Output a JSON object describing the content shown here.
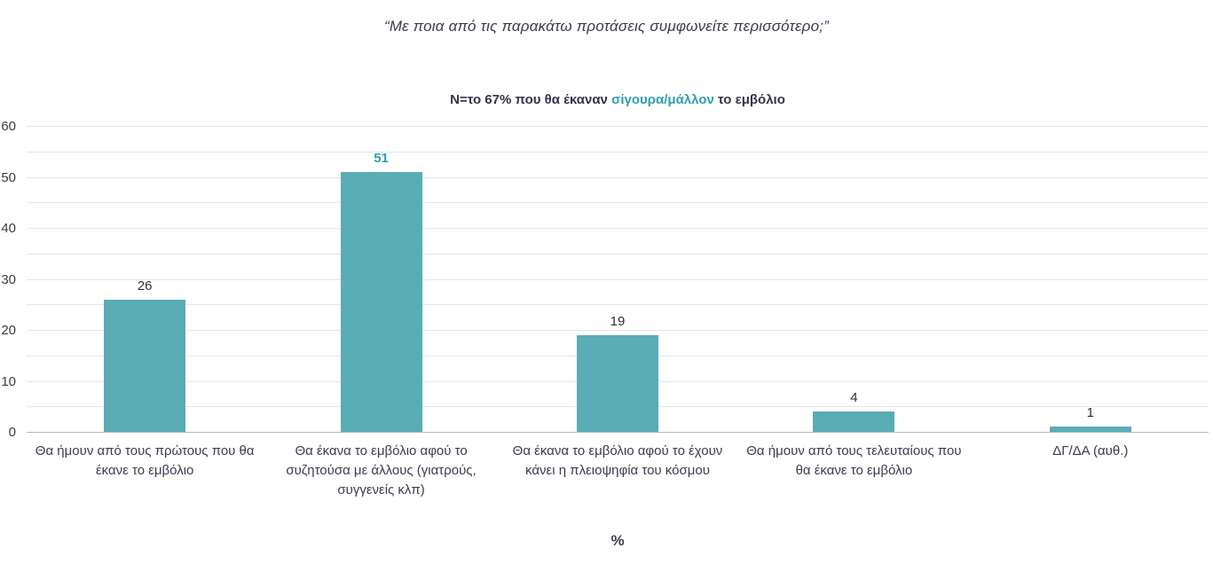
{
  "title": "“Με ποια από τις παρακάτω προτάσεις συμφωνείτε περισσότερο;”",
  "subtitle": {
    "prefix": "N=το 67% που θα έκαναν ",
    "highlight": "σίγουρα/μάλλον",
    "suffix": " το εμβόλιο"
  },
  "chart_data": {
    "type": "bar",
    "categories": [
      "Θα ήμουν από τους πρώτους που θα έκανε το εμβόλιο",
      "Θα έκανα το εμβόλιο αφού το συζητούσα με άλλους (γιατρούς, συγγενείς κλπ)",
      "Θα έκανα το εμβόλιο αφού το έχουν κάνει η πλειοψηφία του κόσμου",
      "Θα ήμουν από τους τελευταίους που θα έκανε το εμβόλιο",
      "ΔΓ/ΔΑ (αυθ.)"
    ],
    "values": [
      26,
      51,
      19,
      4,
      1
    ],
    "highlight_index": 1,
    "title": "Με ποια από τις παρακάτω προτάσεις συμφωνείτε περισσότερο;",
    "xlabel": "%",
    "ylabel": "",
    "ylim": [
      0,
      60
    ],
    "yticks": [
      0,
      10,
      20,
      30,
      40,
      50,
      60
    ],
    "grid_step": 5,
    "legend": "none",
    "colors": {
      "bar": "#5aacb5",
      "highlight_text": "#2f9fae",
      "text": "#3b3b52",
      "gridline": "#e5e5e5"
    }
  }
}
